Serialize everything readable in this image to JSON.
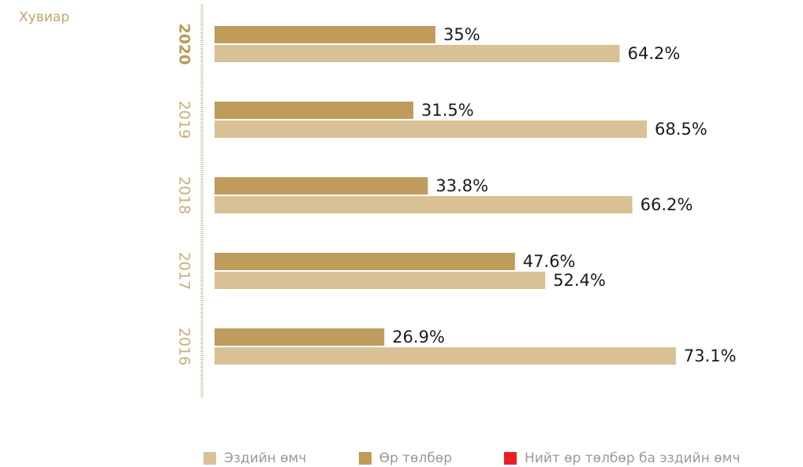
{
  "chart_data": {
    "type": "bar",
    "orientation": "horizontal",
    "unit_label": "Хувиар",
    "categories": [
      "2020",
      "2019",
      "2018",
      "2017",
      "2016"
    ],
    "highlight_category": "2020",
    "series": [
      {
        "name": "Өр төлбөр",
        "color": "#bf9b5c",
        "values": [
          35,
          31.5,
          33.8,
          47.6,
          26.9
        ],
        "labels": [
          "35%",
          "31.5%",
          "33.8%",
          "47.6%",
          "26.9%"
        ]
      },
      {
        "name": "Эздийн өмч",
        "color": "#d8c195",
        "values": [
          64.2,
          68.5,
          66.2,
          52.4,
          73.1
        ],
        "labels": [
          "64.2%",
          "68.5%",
          "66.2%",
          "52.4%",
          "73.1%"
        ]
      }
    ],
    "legend": [
      {
        "label": "Эздийн өмч",
        "color": "#d8c195"
      },
      {
        "label": "Өр төлбөр",
        "color": "#bf9b5c"
      },
      {
        "label": "Нийт өр төлбөр ба эздийн өмч",
        "color": "#ed1c24"
      }
    ],
    "legend_position": "bottom",
    "xlim": [
      0,
      100
    ],
    "grid": false
  }
}
